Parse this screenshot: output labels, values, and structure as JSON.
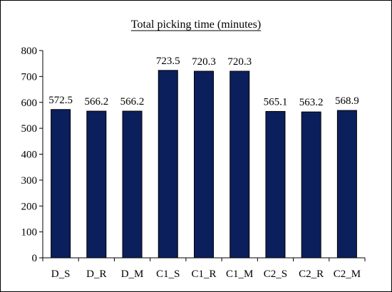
{
  "chart_data": {
    "type": "bar",
    "title": "Total picking time (minutes)",
    "xlabel": "",
    "ylabel": "",
    "categories": [
      "D_S",
      "D_R",
      "D_M",
      "C1_S",
      "C1_R",
      "C1_M",
      "C2_S",
      "C2_R",
      "C2_M"
    ],
    "values": [
      572.5,
      566.2,
      566.2,
      723.5,
      720.3,
      720.3,
      565.1,
      563.2,
      568.9
    ],
    "data_labels": [
      "572.5",
      "566.2",
      "566.2",
      "723.5",
      "720.3",
      "720.3",
      "565.1",
      "563.2",
      "568.9"
    ],
    "ylim": [
      0,
      800
    ],
    "yticks": [
      0,
      100,
      200,
      300,
      400,
      500,
      600,
      700,
      800
    ],
    "grid": false,
    "legend": "none",
    "bar_color": "#0b1f5c"
  }
}
